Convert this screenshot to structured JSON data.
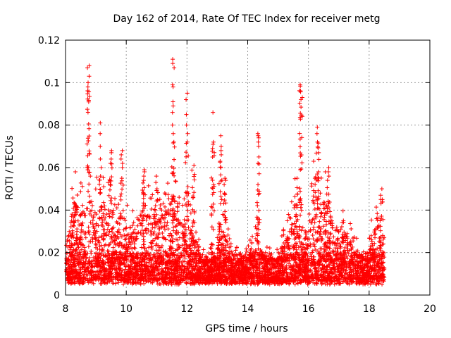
{
  "chart_data": {
    "type": "scatter",
    "title": "Day 162 of 2014, Rate Of TEC Index for receiver metg",
    "xlabel": "GPS time / hours",
    "ylabel": "ROTI / TECUs",
    "xlim": [
      8,
      20
    ],
    "ylim": [
      0,
      0.12
    ],
    "xticks": [
      8,
      10,
      12,
      14,
      16,
      18,
      20
    ],
    "xtick_labels": [
      "8",
      "10",
      "12",
      "14",
      "16",
      "18",
      "20"
    ],
    "yticks": [
      0,
      0.02,
      0.04,
      0.06,
      0.08,
      0.1,
      0.12
    ],
    "ytick_labels": [
      "0",
      "0.02",
      "0.04",
      "0.06",
      "0.08",
      "0.1",
      "0.12"
    ],
    "grid": true,
    "marker": "+",
    "color": "#ff0000",
    "data_range_hours": [
      8.0,
      18.5
    ],
    "background_level_range": [
      0.005,
      0.03
    ],
    "clusters": [
      {
        "x": 8.75,
        "y": [
          0.098,
          0.1,
          0.103,
          0.107,
          0.108
        ]
      },
      {
        "x": 9.15,
        "y": [
          0.056,
          0.06,
          0.064,
          0.07,
          0.076,
          0.081
        ]
      },
      {
        "x": 9.5,
        "y": [
          0.062,
          0.064,
          0.067,
          0.068
        ]
      },
      {
        "x": 9.85,
        "y": [
          0.055,
          0.06,
          0.062,
          0.064,
          0.066,
          0.068
        ]
      },
      {
        "x": 10.6,
        "y": [
          0.054,
          0.056,
          0.058,
          0.059
        ]
      },
      {
        "x": 11.0,
        "y": [
          0.05,
          0.053,
          0.056
        ]
      },
      {
        "x": 11.55,
        "y": [
          0.072,
          0.076,
          0.08,
          0.086,
          0.089,
          0.091,
          0.098,
          0.099,
          0.107,
          0.109,
          0.111
        ]
      },
      {
        "x": 12.0,
        "y": [
          0.072,
          0.076,
          0.08,
          0.085,
          0.092,
          0.095
        ]
      },
      {
        "x": 12.2,
        "y": [
          0.061
        ]
      },
      {
        "x": 12.85,
        "y": [
          0.069,
          0.071,
          0.072,
          0.086
        ]
      },
      {
        "x": 13.1,
        "y": [
          0.063,
          0.066,
          0.068,
          0.07,
          0.075
        ]
      },
      {
        "x": 13.25,
        "y": [
          0.048,
          0.052,
          0.054,
          0.055
        ]
      },
      {
        "x": 14.35,
        "y": [
          0.062,
          0.065,
          0.07,
          0.072,
          0.074,
          0.075,
          0.076
        ]
      },
      {
        "x": 15.6,
        "y": [
          0.055
        ]
      },
      {
        "x": 15.75,
        "y": [
          0.099
        ]
      },
      {
        "x": 16.2,
        "y": [
          0.052,
          0.055,
          0.063
        ]
      },
      {
        "x": 16.3,
        "y": [
          0.072,
          0.076,
          0.079
        ]
      },
      {
        "x": 16.65,
        "y": [
          0.054,
          0.056,
          0.058,
          0.06
        ]
      },
      {
        "x": 18.4,
        "y": [
          0.045,
          0.047,
          0.05
        ]
      }
    ]
  }
}
